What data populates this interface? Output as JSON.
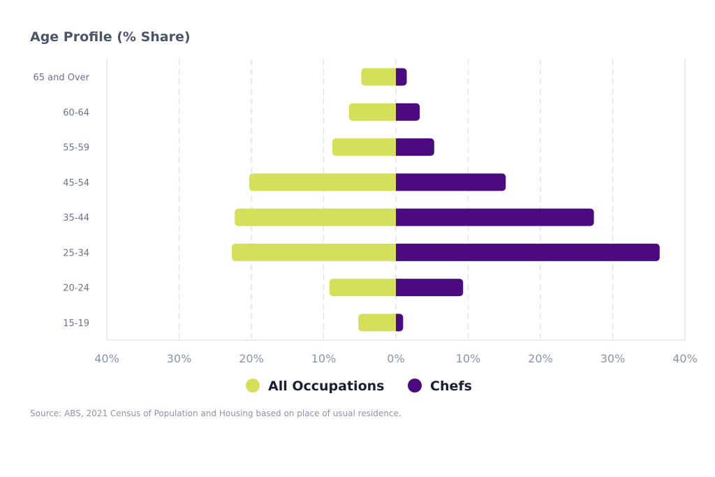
{
  "chart_data": {
    "type": "bar",
    "orientation": "horizontal-diverging",
    "title": "Age Profile (% Share)",
    "categories": [
      "65 and Over",
      "60-64",
      "55-59",
      "45-54",
      "35-44",
      "25-34",
      "20-24",
      "15-19"
    ],
    "series": [
      {
        "name": "All Occupations",
        "color": "#d4df5a",
        "values": [
          4.8,
          6.5,
          8.8,
          20.3,
          22.3,
          22.7,
          9.2,
          5.2
        ]
      },
      {
        "name": "Chefs",
        "color": "#4c0a80",
        "values": [
          1.5,
          3.3,
          5.3,
          15.2,
          27.4,
          36.5,
          9.3,
          1.0
        ]
      }
    ],
    "xticks": [
      "40%",
      "30%",
      "20%",
      "10%",
      "0%",
      "10%",
      "20%",
      "30%",
      "40%"
    ],
    "xlim": [
      -40,
      40
    ],
    "grid": true,
    "legend_position": "bottom"
  },
  "source": "Source: ABS, 2021 Census of Population and Housing based on place of usual residence."
}
